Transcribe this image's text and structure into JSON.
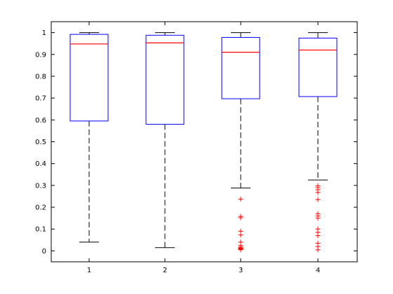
{
  "chart_data": {
    "type": "boxplot",
    "title": "",
    "xlabel": "",
    "ylabel": "",
    "categories": [
      "1",
      "2",
      "3",
      "4"
    ],
    "ylim": [
      -0.05,
      1.05
    ],
    "yticks": [
      "0",
      "0.1",
      "0.2",
      "0.3",
      "0.4",
      "0.5",
      "0.6",
      "0.7",
      "0.8",
      "0.9",
      "1"
    ],
    "grid": false,
    "boxes": [
      {
        "label": "1",
        "whisker_low": 0.04,
        "q1": 0.595,
        "median": 0.948,
        "q3": 0.992,
        "whisker_high": 1.0,
        "outliers": []
      },
      {
        "label": "2",
        "whisker_low": 0.015,
        "q1": 0.58,
        "median": 0.953,
        "q3": 0.988,
        "whisker_high": 1.0,
        "outliers": []
      },
      {
        "label": "3",
        "whisker_low": 0.288,
        "q1": 0.697,
        "median": 0.91,
        "q3": 0.978,
        "whisker_high": 1.0,
        "outliers": [
          0.237,
          0.158,
          0.152,
          0.09,
          0.073,
          0.04,
          0.025,
          0.018,
          0.014,
          0.011,
          0.009,
          0.007,
          0.005
        ]
      },
      {
        "label": "4",
        "whisker_low": 0.325,
        "q1": 0.707,
        "median": 0.92,
        "q3": 0.975,
        "whisker_high": 1.0,
        "outliers": [
          0.298,
          0.29,
          0.28,
          0.268,
          0.235,
          0.17,
          0.16,
          0.15,
          0.1,
          0.085,
          0.07,
          0.035,
          0.02,
          0.005
        ]
      }
    ],
    "colors": {
      "box": "#0000ff",
      "median": "#ff0000",
      "whisker": "#000000",
      "outlier": "#ff0000",
      "axes": "#000000"
    }
  }
}
